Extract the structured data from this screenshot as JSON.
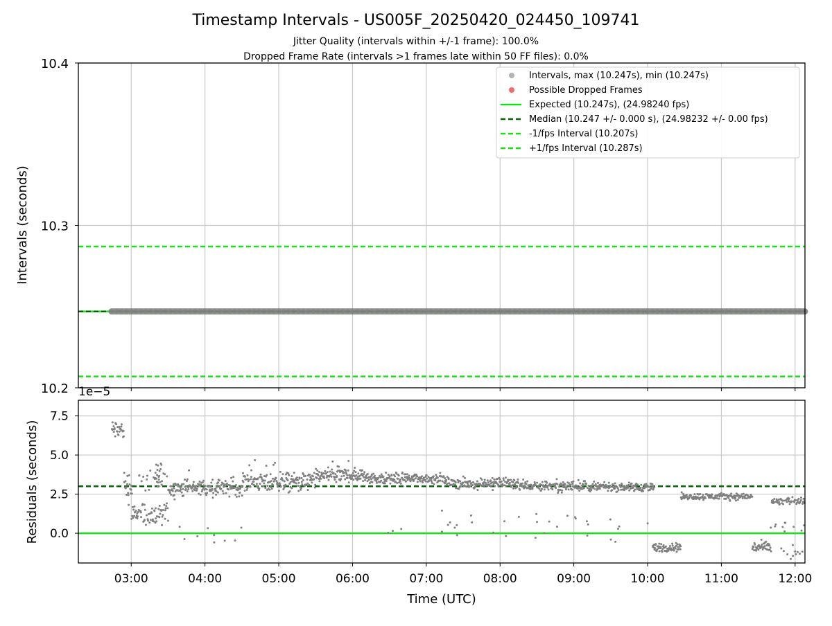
{
  "figure": {
    "title": "Timestamp Intervals - US005F_20250420_024450_109741",
    "subtitle_line1": "Jitter Quality (intervals within +/-1 frame): 100.0%",
    "subtitle_line2": "Dropped Frame Rate (intervals >1 frames late within 50 FF files): 0.0%",
    "xlabel": "Time (UTC)"
  },
  "colors": {
    "points": "#808080",
    "dropped": "#ef6a6a",
    "expected": "#17e017",
    "median": "#006400",
    "fps_bounds": "#17e017",
    "grid": "#c8c8c8"
  },
  "chart_data": [
    {
      "type": "scatter",
      "panel": "intervals",
      "ylabel": "Intervals (seconds)",
      "ylim": [
        10.2,
        10.4
      ],
      "yticks": [
        10.2,
        10.3,
        10.4
      ],
      "ytick_labels": [
        "10.2",
        "10.3",
        "10.4"
      ],
      "xlim": [
        "02:17",
        "12:08"
      ],
      "xticks": [
        "03:00",
        "04:00",
        "05:00",
        "06:00",
        "07:00",
        "08:00",
        "09:00",
        "10:00",
        "11:00",
        "12:00"
      ],
      "grid": true,
      "legend_position": "top-right",
      "series": [
        {
          "name": "Intervals, max (10.247s), min (10.247s)",
          "kind": "points",
          "x_range": [
            "02:44",
            "12:08"
          ],
          "y": 10.247
        },
        {
          "name": "Possible Dropped Frames",
          "kind": "points",
          "count": 0
        },
        {
          "name": "Expected (10.247s), (24.98240 fps)",
          "kind": "line",
          "style": "solid",
          "y": 10.247
        },
        {
          "name": "Median (10.247 +/- 0.000 s), (24.98232 +/- 0.00 fps)",
          "kind": "line",
          "style": "dashed",
          "y": 10.247
        },
        {
          "name": "-1/fps Interval (10.207s)",
          "kind": "line",
          "style": "dashed",
          "y": 10.207
        },
        {
          "name": "+1/fps Interval (10.287s)",
          "kind": "line",
          "style": "dashed",
          "y": 10.287
        }
      ]
    },
    {
      "type": "scatter",
      "panel": "residuals",
      "ylabel": "Residuals (seconds)",
      "yscale_label": "1e−5",
      "ylim": [
        -1.9,
        8.5
      ],
      "yticks": [
        0.0,
        2.5,
        5.0,
        7.5
      ],
      "ytick_labels": [
        "0.0",
        "2.5",
        "5.0",
        "7.5"
      ],
      "xlim": [
        "02:17",
        "12:08"
      ],
      "xticks": [
        "03:00",
        "04:00",
        "05:00",
        "06:00",
        "07:00",
        "08:00",
        "09:00",
        "10:00",
        "11:00",
        "12:00"
      ],
      "xtick_labels": [
        "03:00",
        "04:00",
        "05:00",
        "06:00",
        "07:00",
        "08:00",
        "09:00",
        "10:00",
        "11:00",
        "12:00"
      ],
      "grid": true,
      "median_line": 3.0,
      "zero_line": 0.0,
      "segments": [
        {
          "start": "02:44",
          "end": "02:54",
          "center": 6.6,
          "spread": 0.55,
          "outliers": [],
          "outlier_rate": 0.0
        },
        {
          "start": "02:54",
          "end": "03:00",
          "center": 3.0,
          "spread": 0.9,
          "outliers": [],
          "outlier_rate": 0.0
        },
        {
          "start": "03:00",
          "end": "03:30",
          "center": 1.2,
          "spread": 0.6,
          "outliers": [
            2.6,
            3.6
          ],
          "outlier_rate": 0.2
        },
        {
          "start": "03:19",
          "end": "03:25",
          "center": 3.8,
          "spread": 0.6,
          "outliers": [],
          "outlier_rate": 0.0
        },
        {
          "start": "03:30",
          "end": "04:30",
          "center": 2.9,
          "spread": 0.45,
          "outliers": [
            3.9,
            0.2,
            -0.3
          ],
          "outlier_rate": 0.05
        },
        {
          "start": "04:30",
          "end": "05:30",
          "center": 3.3,
          "spread": 0.5,
          "outliers": [
            4.4
          ],
          "outlier_rate": 0.03
        },
        {
          "start": "05:30",
          "end": "06:15",
          "center": 3.7,
          "spread": 0.4,
          "outliers": [
            4.6
          ],
          "outlier_rate": 0.03
        },
        {
          "start": "06:15",
          "end": "07:15",
          "center": 3.5,
          "spread": 0.3,
          "outliers": [
            0.2,
            1.0
          ],
          "outlier_rate": 0.05
        },
        {
          "start": "07:15",
          "end": "08:15",
          "center": 3.2,
          "spread": 0.3,
          "outliers": [
            0.0,
            0.8
          ],
          "outlier_rate": 0.05
        },
        {
          "start": "08:15",
          "end": "09:10",
          "center": 3.05,
          "spread": 0.3,
          "outliers": [
            0.0,
            1.0
          ],
          "outlier_rate": 0.05
        },
        {
          "start": "09:10",
          "end": "10:05",
          "center": 2.95,
          "spread": 0.25,
          "outliers": [
            -0.1,
            0.6
          ],
          "outlier_rate": 0.05
        },
        {
          "start": "10:04",
          "end": "10:27",
          "center": -0.9,
          "spread": 0.25,
          "outliers": [],
          "outlier_rate": 0.0
        },
        {
          "start": "10:27",
          "end": "11:25",
          "center": 2.35,
          "spread": 0.18,
          "outliers": [],
          "outlier_rate": 0.0
        },
        {
          "start": "11:25",
          "end": "11:40",
          "center": -0.9,
          "spread": 0.3,
          "outliers": [],
          "outlier_rate": 0.0
        },
        {
          "start": "11:40",
          "end": "12:08",
          "center": 2.05,
          "spread": 0.2,
          "outliers": [
            -1.2,
            0.3
          ],
          "outlier_rate": 0.25
        }
      ]
    }
  ]
}
